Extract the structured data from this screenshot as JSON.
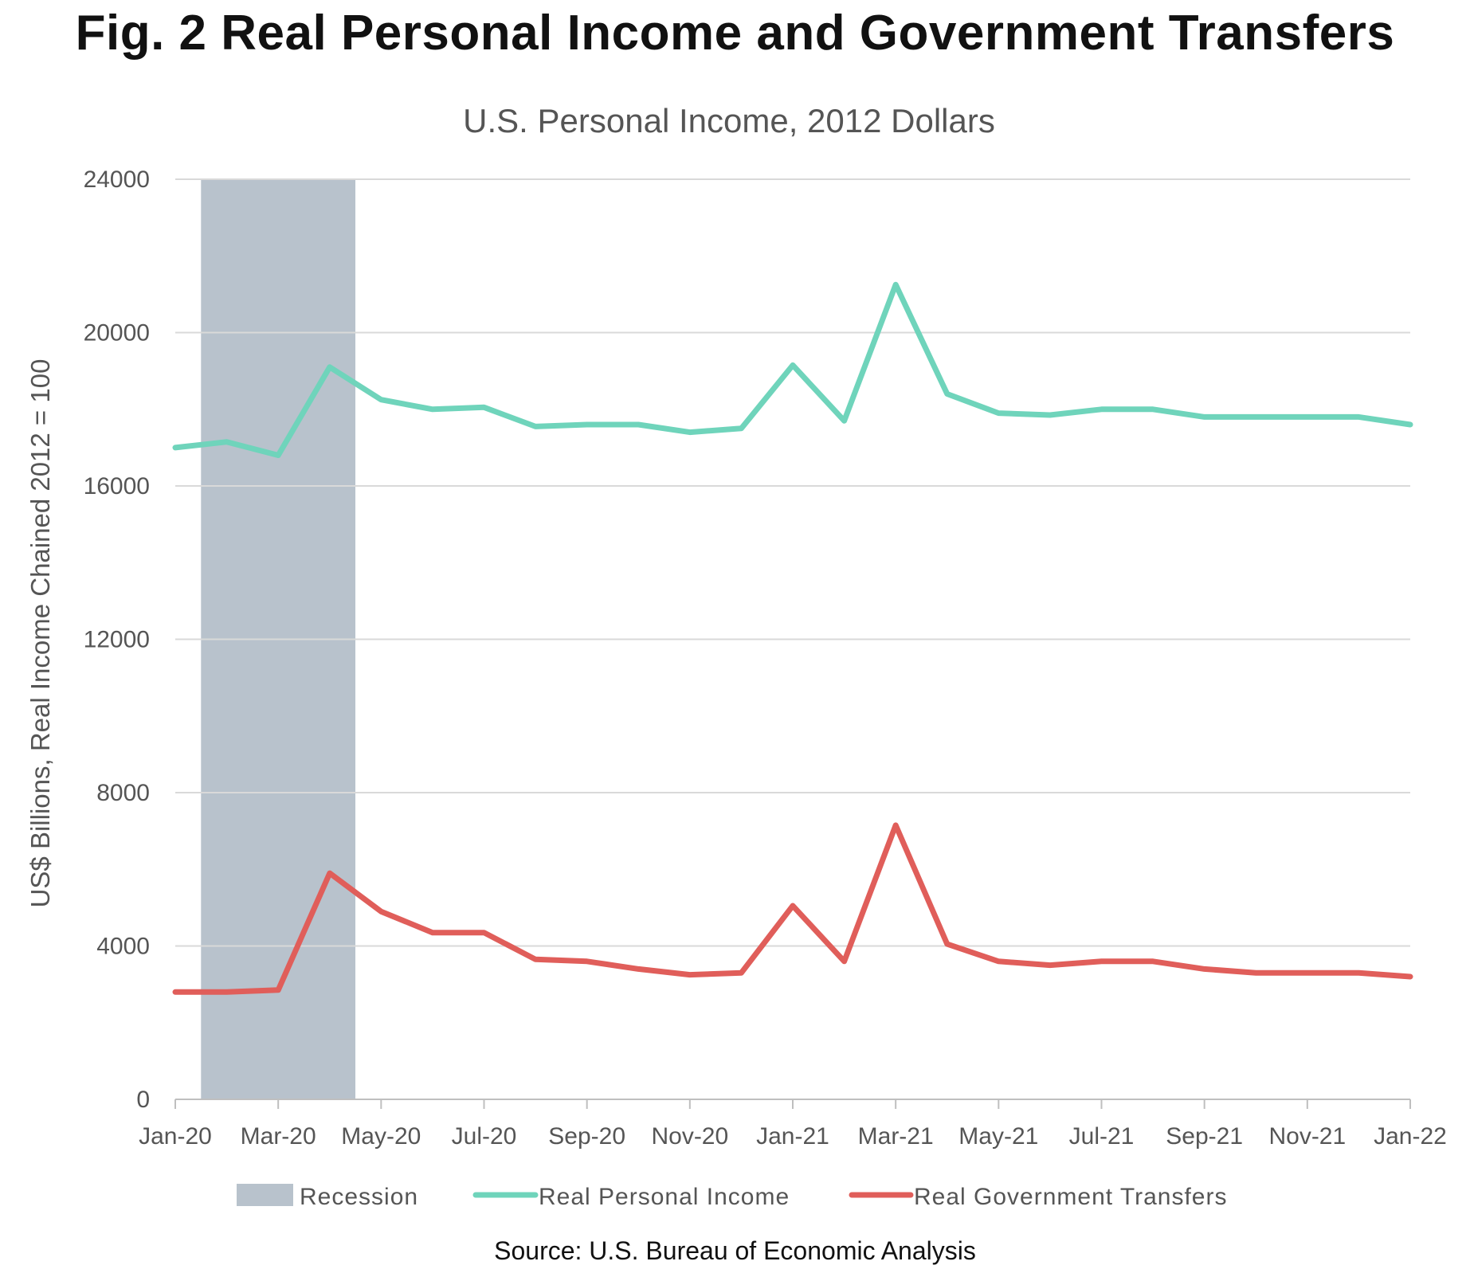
{
  "figure": {
    "title": "Fig. 2 Real Personal Income and Government Transfers",
    "source": "Source: U.S. Bureau of Economic Analysis"
  },
  "colors": {
    "recession": "#b8c2cc",
    "income": "#6fd4bb",
    "transfers": "#e05e5a",
    "grid": "#d9d9d9",
    "axis": "#bfbfbf"
  },
  "chart_data": {
    "type": "line",
    "title": "U.S. Personal Income, 2012 Dollars",
    "xlabel": "",
    "ylabel": "US$ Billions, Real Income Chained 2012 = 100",
    "ylim": [
      0,
      24000
    ],
    "yticks": [
      0,
      4000,
      8000,
      12000,
      16000,
      20000,
      24000
    ],
    "grid": true,
    "legend_position": "bottom",
    "x": [
      "Jan-20",
      "Feb-20",
      "Mar-20",
      "Apr-20",
      "May-20",
      "Jun-20",
      "Jul-20",
      "Aug-20",
      "Sep-20",
      "Oct-20",
      "Nov-20",
      "Dec-20",
      "Jan-21",
      "Feb-21",
      "Mar-21",
      "Apr-21",
      "May-21",
      "Jun-21",
      "Jul-21",
      "Aug-21",
      "Sep-21",
      "Oct-21",
      "Nov-21",
      "Dec-21",
      "Jan-22"
    ],
    "xtick_labels": [
      "Jan-20",
      "Mar-20",
      "May-20",
      "Jul-20",
      "Sep-20",
      "Nov-20",
      "Jan-21",
      "Mar-21",
      "May-21",
      "Jul-21",
      "Sep-21",
      "Nov-21",
      "Jan-22"
    ],
    "recession": {
      "name": "Recession",
      "start_index": 0.5,
      "end_index": 3.5
    },
    "series": [
      {
        "name": "Real Personal Income",
        "color": "#6fd4bb",
        "values": [
          17000,
          17150,
          16800,
          19100,
          18250,
          18000,
          18050,
          17550,
          17600,
          17600,
          17400,
          17500,
          19150,
          17700,
          21250,
          18400,
          17900,
          17850,
          18000,
          18000,
          17800,
          17800,
          17800,
          17800,
          17600
        ]
      },
      {
        "name": "Real Government Transfers",
        "color": "#e05e5a",
        "values": [
          2800,
          2800,
          2850,
          5900,
          4900,
          4350,
          4350,
          3650,
          3600,
          3400,
          3250,
          3300,
          5050,
          3600,
          7150,
          4050,
          3600,
          3500,
          3600,
          3600,
          3400,
          3300,
          3300,
          3300,
          3200
        ]
      }
    ]
  }
}
